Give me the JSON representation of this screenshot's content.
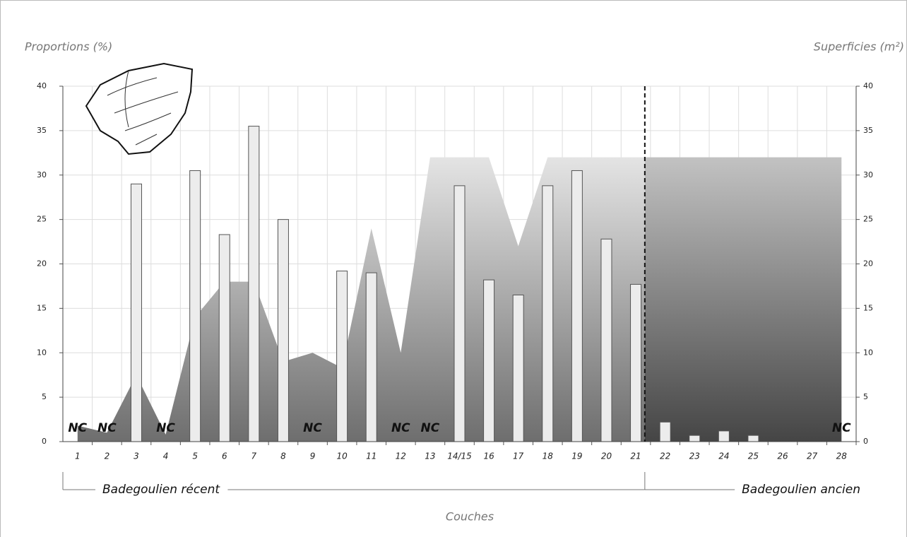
{
  "chart_data": {
    "type": "bar",
    "ylabel": "Proportions (%)",
    "y2label": "Superficies (m²)",
    "xlabel": "Couches",
    "categories": [
      "1",
      "2",
      "3",
      "4",
      "5",
      "6",
      "7",
      "8",
      "9",
      "10",
      "11",
      "12",
      "13",
      "14/15",
      "16",
      "17",
      "18",
      "19",
      "20",
      "21",
      "22",
      "23",
      "24",
      "25",
      "26",
      "27",
      "28"
    ],
    "series": [
      {
        "type": "area",
        "axis": "y2",
        "color": "#808080",
        "values": [
          1.8,
          1,
          7.5,
          0.8,
          14,
          18,
          18,
          9,
          10,
          8.3,
          24,
          10,
          32,
          32,
          32,
          22,
          32,
          32,
          32,
          32,
          32,
          32,
          32,
          32,
          32,
          32,
          32
        ]
      },
      {
        "type": "bar",
        "color": "#ececec",
        "values": [
          null,
          null,
          29,
          null,
          30.5,
          23.3,
          35.5,
          25,
          null,
          19.2,
          19,
          null,
          null,
          28.8,
          18.2,
          16.5,
          28.8,
          30.5,
          22.8,
          17.7,
          2.2,
          0.7,
          1.2,
          0.7,
          0,
          0,
          null
        ],
        "value_labels": [
          "NC",
          "NC",
          null,
          "NC",
          null,
          null,
          null,
          null,
          "NC",
          null,
          null,
          "NC",
          "NC",
          null,
          null,
          null,
          null,
          null,
          null,
          null,
          null,
          null,
          null,
          null,
          null,
          null,
          "NC"
        ]
      }
    ],
    "groups": [
      {
        "name": "Badegoulien récent",
        "from": "1",
        "to": "21"
      },
      {
        "name": "Badegoulien ancien",
        "from": "22",
        "to": "28"
      }
    ],
    "ylim": [
      0,
      40
    ],
    "yticks": [
      0,
      5,
      10,
      15,
      20,
      25,
      30,
      35,
      40
    ],
    "y2lim": [
      0,
      40
    ],
    "y2ticks": [
      0,
      5,
      10,
      15,
      20,
      25,
      30,
      35,
      40
    ],
    "grid": true
  }
}
